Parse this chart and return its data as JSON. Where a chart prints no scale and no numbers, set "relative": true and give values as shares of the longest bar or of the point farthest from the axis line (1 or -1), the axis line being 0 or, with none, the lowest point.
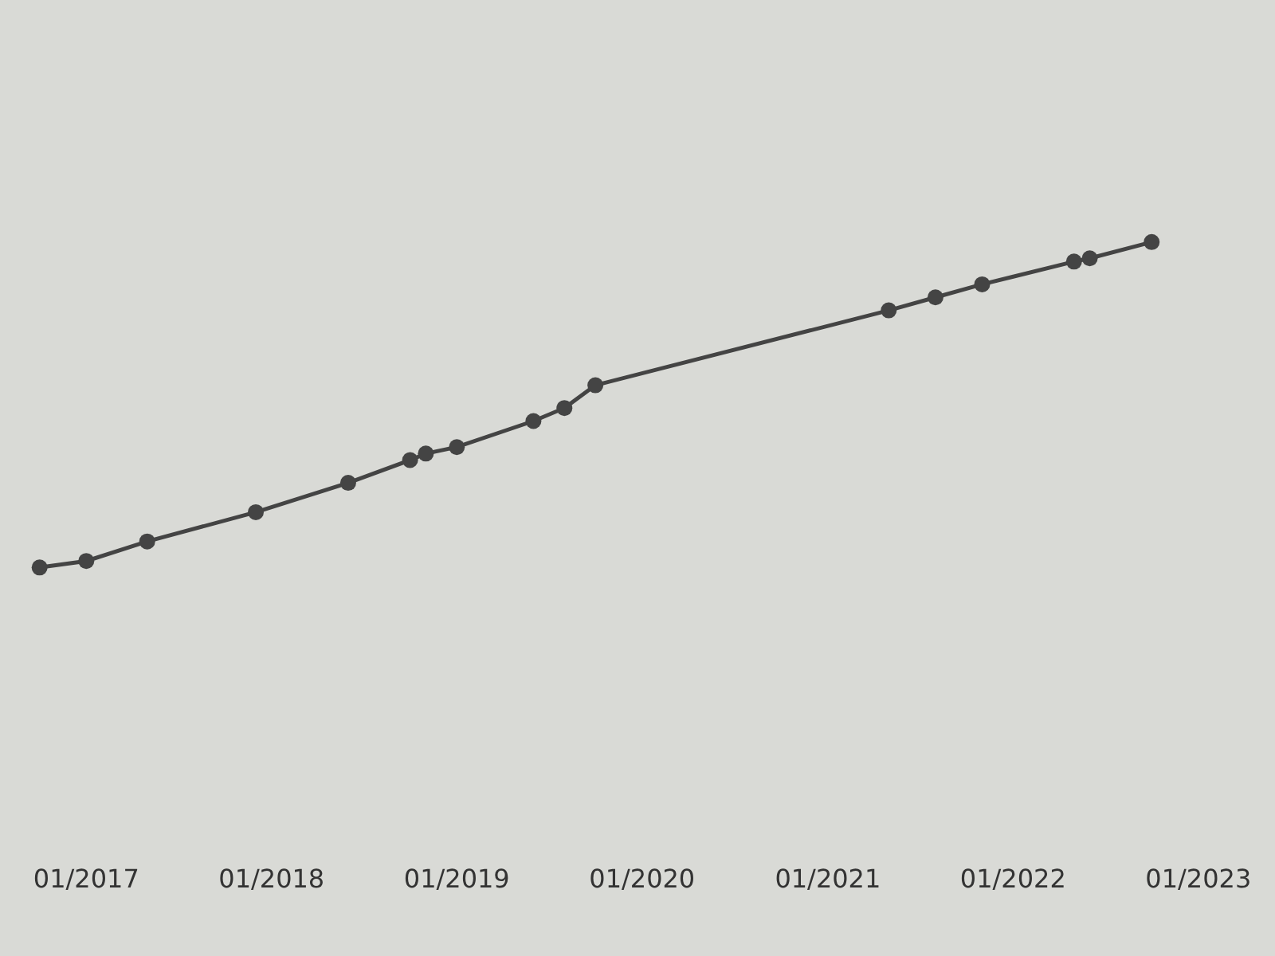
{
  "chart_data": {
    "type": "line",
    "relative": true,
    "marker": "circle",
    "line_style": "solid",
    "x": [
      "2016-10",
      "2017-01",
      "2017-05",
      "2017-12",
      "2018-06",
      "2018-10",
      "2018-11",
      "2019-01",
      "2019-06",
      "2019-08",
      "2019-10",
      "2021-05",
      "2021-08",
      "2021-11",
      "2022-05",
      "2022-06",
      "2022-10"
    ],
    "series": [
      {
        "color": "#444444",
        "values": [
          0,
          0.02,
          0.08,
          0.17,
          0.26,
          0.33,
          0.35,
          0.37,
          0.45,
          0.49,
          0.56,
          0.79,
          0.83,
          0.87,
          0.94,
          0.95,
          1
        ]
      }
    ],
    "xlim": [
      "2016-07-15",
      "2023-06-01"
    ],
    "xticks": [
      {
        "value": "2017-01-01",
        "label": "01/2017"
      },
      {
        "value": "2018-01-01",
        "label": "01/2018"
      },
      {
        "value": "2019-01-01",
        "label": "01/2019"
      },
      {
        "value": "2020-01-01",
        "label": "01/2020"
      },
      {
        "value": "2021-01-01",
        "label": "01/2021"
      },
      {
        "value": "2022-01-01",
        "label": "01/2022"
      },
      {
        "value": "2023-01-01",
        "label": "01/2023"
      }
    ]
  }
}
